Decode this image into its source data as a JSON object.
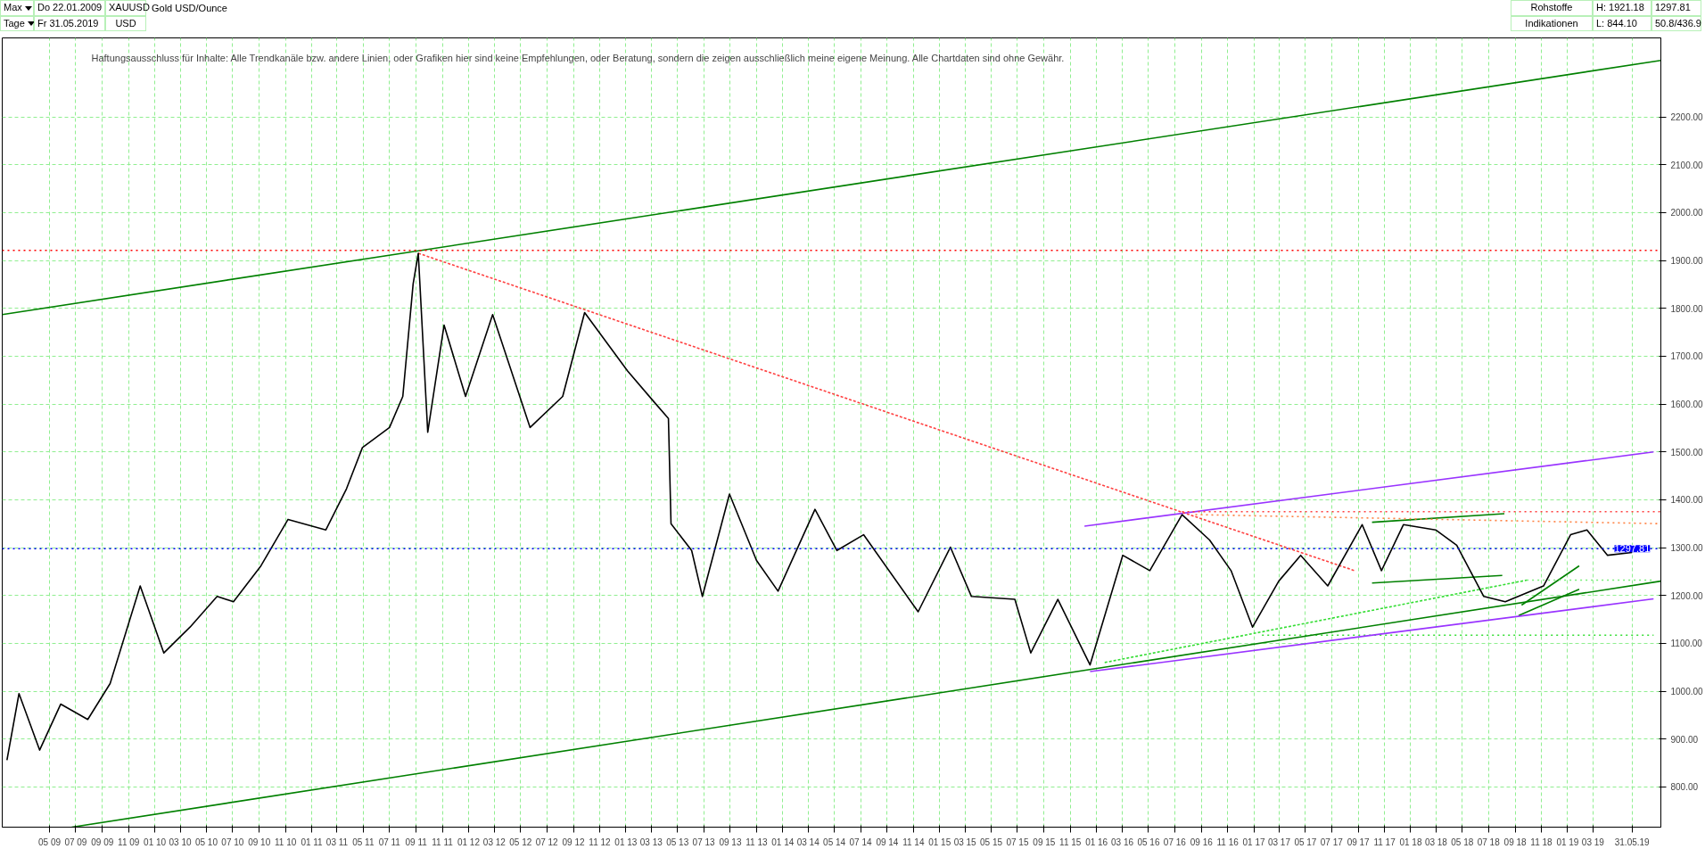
{
  "chart_data": {
    "type": "line",
    "title": "Gold USD/Ounce",
    "annotations": [
      "Max",
      "Tage",
      "Do 22.01.2009",
      "Fr 31.05.2019",
      "XAUUSD",
      "USD",
      "Rohstoffe",
      "Indikationen",
      "H: 1921.18",
      "L: 844.10",
      "1297.81",
      "50.8/436.9",
      "Haftungsausschluss für Inhalte: Alle Trendkanäle bzw. andere Linien, oder Grafiken hier sind keine Empfehlungen, oder Beratung, sondern die zeigen ausschließlich meine eigene Meinung. Alle Chartdaten sind ohne Gewähr."
    ],
    "xlim": [
      "2009-01-11",
      "2019-08-06"
    ],
    "ylim": [
      716,
      2365
    ],
    "yticks": [
      {
        "value": 800,
        "label": "800.00"
      },
      {
        "value": 900,
        "label": "900.00"
      },
      {
        "value": 1000,
        "label": "1000.00"
      },
      {
        "value": 1100,
        "label": "1100.00"
      },
      {
        "value": 1200,
        "label": "1200.00"
      },
      {
        "value": 1300,
        "label": "1300.00"
      },
      {
        "value": 1400,
        "label": "1400.00"
      },
      {
        "value": 1500,
        "label": "1500.00"
      },
      {
        "value": 1600,
        "label": "1600.00"
      },
      {
        "value": 1700,
        "label": "1700.00"
      },
      {
        "value": 1800,
        "label": "1800.00"
      },
      {
        "value": 1900,
        "label": "1900.00"
      },
      {
        "value": 2000,
        "label": "2000.00"
      },
      {
        "value": 2100,
        "label": "2100.00"
      },
      {
        "value": 2200,
        "label": "2200.00"
      }
    ],
    "xticks": [
      {
        "value": "2009-05",
        "label": "05 09"
      },
      {
        "value": "2009-07",
        "label": "07 09"
      },
      {
        "value": "2009-09",
        "label": "09 09"
      },
      {
        "value": "2009-11",
        "label": "11 09"
      },
      {
        "value": "2010-01",
        "label": "01 10"
      },
      {
        "value": "2010-03",
        "label": "03 10"
      },
      {
        "value": "2010-05",
        "label": "05 10"
      },
      {
        "value": "2010-07",
        "label": "07 10"
      },
      {
        "value": "2010-09",
        "label": "09 10"
      },
      {
        "value": "2010-11",
        "label": "11 10"
      },
      {
        "value": "2011-01",
        "label": "01 11"
      },
      {
        "value": "2011-03",
        "label": "03 11"
      },
      {
        "value": "2011-05",
        "label": "05 11"
      },
      {
        "value": "2011-07",
        "label": "07 11"
      },
      {
        "value": "2011-09",
        "label": "09 11"
      },
      {
        "value": "2011-11",
        "label": "11 11"
      },
      {
        "value": "2012-01",
        "label": "01 12"
      },
      {
        "value": "2012-03",
        "label": "03 12"
      },
      {
        "value": "2012-05",
        "label": "05 12"
      },
      {
        "value": "2012-07",
        "label": "07 12"
      },
      {
        "value": "2012-09",
        "label": "09 12"
      },
      {
        "value": "2012-11",
        "label": "11 12"
      },
      {
        "value": "2013-01",
        "label": "01 13"
      },
      {
        "value": "2013-03",
        "label": "03 13"
      },
      {
        "value": "2013-05",
        "label": "05 13"
      },
      {
        "value": "2013-07",
        "label": "07 13"
      },
      {
        "value": "2013-09",
        "label": "09 13"
      },
      {
        "value": "2013-11",
        "label": "11 13"
      },
      {
        "value": "2014-01",
        "label": "01 14"
      },
      {
        "value": "2014-03",
        "label": "03 14"
      },
      {
        "value": "2014-05",
        "label": "05 14"
      },
      {
        "value": "2014-07",
        "label": "07 14"
      },
      {
        "value": "2014-09",
        "label": "09 14"
      },
      {
        "value": "2014-11",
        "label": "11 14"
      },
      {
        "value": "2015-01",
        "label": "01 15"
      },
      {
        "value": "2015-03",
        "label": "03 15"
      },
      {
        "value": "2015-05",
        "label": "05 15"
      },
      {
        "value": "2015-07",
        "label": "07 15"
      },
      {
        "value": "2015-09",
        "label": "09 15"
      },
      {
        "value": "2015-11",
        "label": "11 15"
      },
      {
        "value": "2016-01",
        "label": "01 16"
      },
      {
        "value": "2016-03",
        "label": "03 16"
      },
      {
        "value": "2016-05",
        "label": "05 16"
      },
      {
        "value": "2016-07",
        "label": "07 16"
      },
      {
        "value": "2016-09",
        "label": "09 16"
      },
      {
        "value": "2016-11",
        "label": "11 16"
      },
      {
        "value": "2017-01",
        "label": "01 17"
      },
      {
        "value": "2017-03",
        "label": "03 17"
      },
      {
        "value": "2017-05",
        "label": "05 17"
      },
      {
        "value": "2017-07",
        "label": "07 17"
      },
      {
        "value": "2017-09",
        "label": "09 17"
      },
      {
        "value": "2017-11",
        "label": "11 17"
      },
      {
        "value": "2018-01",
        "label": "01 18"
      },
      {
        "value": "2018-03",
        "label": "03 18"
      },
      {
        "value": "2018-05",
        "label": "05 18"
      },
      {
        "value": "2018-07",
        "label": "07 18"
      },
      {
        "value": "2018-09",
        "label": "09 18"
      },
      {
        "value": "2018-11",
        "label": "11 18"
      },
      {
        "value": "2019-01",
        "label": "01 19"
      },
      {
        "value": "2019-03",
        "label": "03 19"
      },
      {
        "value": "2019-05-31",
        "label": "31.05.19"
      }
    ],
    "grid": true,
    "ref_lines": [
      {
        "axis": "y",
        "value": 1921.18,
        "color": "#ff0000",
        "line_style": "dotted"
      },
      {
        "axis": "y",
        "value": 1297.81,
        "label": "1297.81",
        "color": "#0000ff",
        "line_style": "dotted"
      }
    ],
    "series": [
      {
        "color": "#000000",
        "x": [
          "2009-01-22",
          "2009-02-19",
          "2009-04-08",
          "2009-05-27",
          "2009-07-29",
          "2009-09-19",
          "2009-11-28",
          "2010-01-22",
          "2010-03-24",
          "2010-05-26",
          "2010-07-03",
          "2010-09-05",
          "2010-11-07",
          "2011-02-03",
          "2011-03-23",
          "2011-04-29",
          "2011-07-01",
          "2011-08-01",
          "2011-08-25",
          "2011-09-06",
          "2011-09-28",
          "2011-11-05",
          "2011-12-25",
          "2012-02-26",
          "2012-05-23",
          "2012-08-07",
          "2012-09-27",
          "2013-01-05",
          "2013-03-07",
          "2013-04-10",
          "2013-04-16",
          "2013-06-03",
          "2013-06-28",
          "2013-08-30",
          "2013-11-01",
          "2013-12-21",
          "2014-03-17",
          "2014-05-07",
          "2014-07-08",
          "2014-11-12",
          "2015-01-26",
          "2015-03-16",
          "2015-06-25",
          "2015-08-01",
          "2015-10-03",
          "2015-12-17",
          "2016-03-02",
          "2016-05-04",
          "2016-07-18",
          "2016-09-20",
          "2016-11-09",
          "2016-12-29",
          "2017-02-28",
          "2017-04-20",
          "2017-06-22",
          "2017-09-10",
          "2017-10-25",
          "2017-12-15",
          "2018-02-28",
          "2018-04-18",
          "2018-06-20",
          "2018-08-09",
          "2018-11-06",
          "2019-01-08",
          "2019-02-15",
          "2019-04-04",
          "2019-05-31"
        ],
        "values": [
          856,
          995,
          877,
          973,
          941,
          1016,
          1220,
          1080,
          1134,
          1198,
          1187,
          1262,
          1359,
          1337,
          1423,
          1509,
          1551,
          1616,
          1851,
          1915,
          1541,
          1765,
          1616,
          1787,
          1551,
          1616,
          1791,
          1669,
          1605,
          1570,
          1350,
          1294,
          1198,
          1412,
          1273,
          1209,
          1380,
          1294,
          1327,
          1166,
          1301,
          1198,
          1192,
          1080,
          1192,
          1055,
          1284,
          1252,
          1369,
          1316,
          1252,
          1134,
          1230,
          1284,
          1220,
          1348,
          1252,
          1348,
          1337,
          1305,
          1198,
          1187,
          1220,
          1327,
          1337,
          1284,
          1290
        ]
      },
      {
        "color": "#008000",
        "x": [
          "2009-01-11",
          "2019-08-06"
        ],
        "values": [
          1787,
          2318
        ]
      },
      {
        "color": "#008000",
        "x": [
          "2009-06-22",
          "2019-08-06"
        ],
        "values": [
          716,
          1230
        ]
      },
      {
        "color": "#ff4040",
        "line_style": "dashed",
        "x": [
          "2011-09-06",
          "2017-08-23"
        ],
        "values": [
          1915,
          1252
        ]
      },
      {
        "color": "#ff4040",
        "line_style": "dotted",
        "x": [
          "2016-07-18",
          "2019-08-06"
        ],
        "values": [
          1375,
          1375
        ]
      },
      {
        "color": "#ff8040",
        "line_style": "dotted",
        "x": [
          "2016-08-18",
          "2019-08-06"
        ],
        "values": [
          1369,
          1350
        ]
      },
      {
        "color": "#9933ff",
        "x": [
          "2015-12-04",
          "2019-07-20"
        ],
        "values": [
          1345,
          1500
        ]
      },
      {
        "color": "#9933ff",
        "x": [
          "2015-12-17",
          "2019-07-20"
        ],
        "values": [
          1041,
          1193
        ]
      },
      {
        "color": "#33dd33",
        "line_style": "dashed",
        "x": [
          "2016-01-20",
          "2018-09-28"
        ],
        "values": [
          1060,
          1232
        ]
      },
      {
        "color": "#77ee77",
        "line_style": "dotted",
        "x": [
          "2018-09-28",
          "2019-07-20"
        ],
        "values": [
          1232,
          1232
        ]
      },
      {
        "color": "#33dd33",
        "line_style": "dotted",
        "x": [
          "2017-01-20",
          "2019-07-20"
        ],
        "values": [
          1117,
          1117
        ]
      },
      {
        "color": "#008000",
        "x": [
          "2017-10-03",
          "2018-08-07"
        ],
        "values": [
          1353,
          1371
        ]
      },
      {
        "color": "#008000",
        "x": [
          "2017-10-03",
          "2018-08-02"
        ],
        "values": [
          1226,
          1242
        ]
      },
      {
        "color": "#008000",
        "x": [
          "2018-09-09",
          "2019-01-28"
        ],
        "values": [
          1158,
          1213
        ]
      },
      {
        "color": "#008000",
        "x": [
          "2018-09-16",
          "2019-01-28"
        ],
        "values": [
          1180,
          1262
        ]
      }
    ]
  }
}
